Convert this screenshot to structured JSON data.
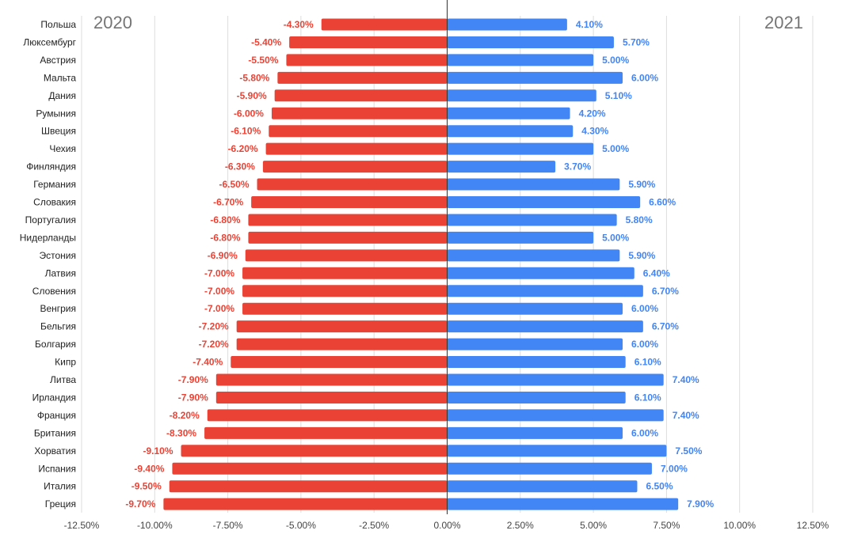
{
  "chart_data": {
    "type": "bar",
    "orientation": "horizontal-diverging",
    "categories": [
      "Польша",
      "Люксембург",
      "Австрия",
      "Мальта",
      "Дания",
      "Румыния",
      "Швеция",
      "Чехия",
      "Финляндия",
      "Германия",
      "Словакия",
      "Португалия",
      "Нидерланды",
      "Эстония",
      "Латвия",
      "Словения",
      "Венгрия",
      "Бельгия",
      "Болгария",
      "Кипр",
      "Литва",
      "Ирландия",
      "Франция",
      "Британия",
      "Хорватия",
      "Испания",
      "Италия",
      "Греция"
    ],
    "series": [
      {
        "name": "2020",
        "color": "#ea4335",
        "values": [
          -4.3,
          -5.4,
          -5.5,
          -5.8,
          -5.9,
          -6.0,
          -6.1,
          -6.2,
          -6.3,
          -6.5,
          -6.7,
          -6.8,
          -6.8,
          -6.9,
          -7.0,
          -7.0,
          -7.0,
          -7.2,
          -7.2,
          -7.4,
          -7.9,
          -7.9,
          -8.2,
          -8.3,
          -9.1,
          -9.4,
          -9.5,
          -9.7
        ],
        "labels": [
          "-4.30%",
          "-5.40%",
          "-5.50%",
          "-5.80%",
          "-5.90%",
          "-6.00%",
          "-6.10%",
          "-6.20%",
          "-6.30%",
          "-6.50%",
          "-6.70%",
          "-6.80%",
          "-6.80%",
          "-6.90%",
          "-7.00%",
          "-7.00%",
          "-7.00%",
          "-7.20%",
          "-7.20%",
          "-7.40%",
          "-7.90%",
          "-7.90%",
          "-8.20%",
          "-8.30%",
          "-9.10%",
          "-9.40%",
          "-9.50%",
          "-9.70%"
        ]
      },
      {
        "name": "2021",
        "color": "#4285f4",
        "values": [
          4.1,
          5.7,
          5.0,
          6.0,
          5.1,
          4.2,
          4.3,
          5.0,
          3.7,
          5.9,
          6.6,
          5.8,
          5.0,
          5.9,
          6.4,
          6.7,
          6.0,
          6.7,
          6.0,
          6.1,
          7.4,
          6.1,
          7.4,
          6.0,
          7.5,
          7.0,
          6.5,
          7.9
        ],
        "labels": [
          "4.10%",
          "5.70%",
          "5.00%",
          "6.00%",
          "5.10%",
          "4.20%",
          "4.30%",
          "5.00%",
          "3.70%",
          "5.90%",
          "6.60%",
          "5.80%",
          "5.00%",
          "5.90%",
          "6.40%",
          "6.70%",
          "6.00%",
          "6.70%",
          "6.00%",
          "6.10%",
          "7.40%",
          "6.10%",
          "7.40%",
          "6.00%",
          "7.50%",
          "7.00%",
          "6.50%",
          "7.90%"
        ]
      }
    ],
    "xlim": [
      -12.5,
      12.5
    ],
    "xticks": [
      -12.5,
      -10,
      -7.5,
      -5,
      -2.5,
      0,
      2.5,
      5,
      7.5,
      10,
      12.5
    ],
    "xtick_labels": [
      "-12.50%",
      "-10.00%",
      "-7.50%",
      "-5.00%",
      "-2.50%",
      "0.00%",
      "2.50%",
      "5.00%",
      "7.50%",
      "10.00%",
      "12.50%"
    ],
    "grid": true,
    "title": "",
    "xlabel": "",
    "ylabel": ""
  },
  "labels": {
    "left_year": "2020",
    "right_year": "2021"
  },
  "colors": {
    "grid": "#dddddd",
    "zero_line": "#333333",
    "text": "#222222",
    "axis_text": "#444444"
  }
}
